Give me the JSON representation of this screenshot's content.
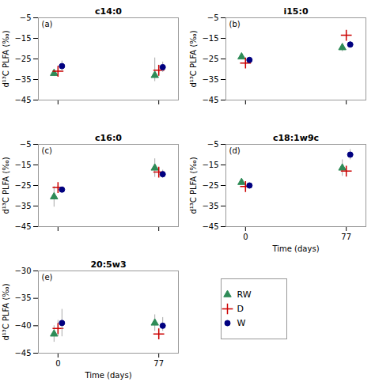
{
  "chart_data": [
    {
      "type": "scatter",
      "title": "c14:0",
      "annotation": "(a)",
      "ylabel": "d¹³C PLFA (‰)",
      "x": [
        0,
        77
      ],
      "xlim": [
        -15,
        92
      ],
      "xticks": [
        0,
        77
      ],
      "ylim": [
        -45,
        -5
      ],
      "yticks": [
        -45,
        -35,
        -25,
        -15,
        -5
      ],
      "tick_labels": "y",
      "grid": false,
      "series": [
        {
          "name": "RW",
          "color": "#2e8b57",
          "marker": "triangle",
          "values": [
            -32.0,
            -33.0
          ],
          "yerr_lo": [
            1.5,
            3.0
          ],
          "yerr_hi": [
            1.5,
            8.5
          ]
        },
        {
          "name": "D",
          "color": "#cc0000",
          "marker": "plus",
          "values": [
            -31.0,
            -30.5
          ],
          "yerr_lo": [
            1.5,
            2.0
          ],
          "yerr_hi": [
            1.5,
            2.5
          ]
        },
        {
          "name": "W",
          "color": "#000080",
          "marker": "circle",
          "values": [
            -28.5,
            -29.0
          ],
          "yerr_lo": [
            2.5,
            2.5
          ],
          "yerr_hi": [
            2.5,
            2.5
          ]
        }
      ]
    },
    {
      "type": "scatter",
      "title": "i15:0",
      "annotation": "(b)",
      "ylabel": "d¹³C PLFA (‰)",
      "x": [
        0,
        77
      ],
      "xlim": [
        -15,
        92
      ],
      "xticks": [
        0,
        77
      ],
      "ylim": [
        -45,
        -5
      ],
      "yticks": [
        -45,
        -35,
        -25,
        -15,
        -5
      ],
      "tick_labels": "y",
      "grid": false,
      "series": [
        {
          "name": "RW",
          "color": "#2e8b57",
          "marker": "triangle",
          "values": [
            -24.0,
            -19.5
          ],
          "yerr_lo": [
            1.0,
            2.0
          ],
          "yerr_hi": [
            1.0,
            2.0
          ]
        },
        {
          "name": "D",
          "color": "#cc0000",
          "marker": "plus",
          "values": [
            -27.0,
            -13.5
          ],
          "yerr_lo": [
            1.0,
            1.5
          ],
          "yerr_hi": [
            1.0,
            1.5
          ]
        },
        {
          "name": "W",
          "color": "#000080",
          "marker": "circle",
          "values": [
            -25.5,
            -18.0
          ],
          "yerr_lo": [
            1.0,
            1.5
          ],
          "yerr_hi": [
            1.0,
            1.5
          ]
        }
      ]
    },
    {
      "type": "scatter",
      "title": "c16:0",
      "annotation": "(c)",
      "ylabel": "d¹³C PLFA (‰)",
      "x": [
        0,
        77
      ],
      "xlim": [
        -15,
        92
      ],
      "xticks": [
        0,
        77
      ],
      "ylim": [
        -45,
        -5
      ],
      "yticks": [
        -45,
        -35,
        -25,
        -15,
        -5
      ],
      "tick_labels": "y",
      "grid": false,
      "series": [
        {
          "name": "RW",
          "color": "#2e8b57",
          "marker": "triangle",
          "values": [
            -30.5,
            -16.5
          ],
          "yerr_lo": [
            5.0,
            4.5
          ],
          "yerr_hi": [
            5.0,
            4.5
          ]
        },
        {
          "name": "D",
          "color": "#cc0000",
          "marker": "plus",
          "values": [
            -26.0,
            -18.5
          ],
          "yerr_lo": [
            1.0,
            2.0
          ],
          "yerr_hi": [
            1.0,
            2.0
          ]
        },
        {
          "name": "W",
          "color": "#000080",
          "marker": "circle",
          "values": [
            -27.0,
            -19.5
          ],
          "yerr_lo": [
            1.0,
            2.0
          ],
          "yerr_hi": [
            1.0,
            2.0
          ]
        }
      ]
    },
    {
      "type": "scatter",
      "title": "c18:1w9c",
      "annotation": "(d)",
      "ylabel": "d¹³C PLFA (‰)",
      "xlabel": "Time (days)",
      "x": [
        0,
        77
      ],
      "xlim": [
        -15,
        92
      ],
      "xticks": [
        0,
        77
      ],
      "ylim": [
        -45,
        -5
      ],
      "yticks": [
        -45,
        -35,
        -25,
        -15,
        -5
      ],
      "grid": false,
      "series": [
        {
          "name": "RW",
          "color": "#2e8b57",
          "marker": "triangle",
          "values": [
            -23.5,
            -16.5
          ],
          "yerr_lo": [
            1.0,
            4.0
          ],
          "yerr_hi": [
            1.0,
            4.0
          ]
        },
        {
          "name": "D",
          "color": "#cc0000",
          "marker": "plus",
          "values": [
            -25.5,
            -18.0
          ],
          "yerr_lo": [
            1.0,
            1.5
          ],
          "yerr_hi": [
            1.0,
            1.5
          ]
        },
        {
          "name": "W",
          "color": "#000080",
          "marker": "circle",
          "values": [
            -25.0,
            -10.0
          ],
          "yerr_lo": [
            1.0,
            2.5
          ],
          "yerr_hi": [
            1.0,
            2.5
          ]
        }
      ]
    },
    {
      "type": "scatter",
      "title": "20:5w3",
      "annotation": "(e)",
      "ylabel": "d¹³C PLFA (‰)",
      "xlabel": "Time (days)",
      "x": [
        0,
        77
      ],
      "xlim": [
        -15,
        92
      ],
      "xticks": [
        0,
        77
      ],
      "ylim": [
        -45,
        -30
      ],
      "yticks": [
        -45,
        -40,
        -35,
        -30
      ],
      "grid": false,
      "legend": "right",
      "series": [
        {
          "name": "RW",
          "color": "#2e8b57",
          "marker": "triangle",
          "values": [
            -41.5,
            -39.5
          ],
          "yerr_lo": [
            1.5,
            1.5
          ],
          "yerr_hi": [
            1.5,
            1.5
          ]
        },
        {
          "name": "D",
          "color": "#cc0000",
          "marker": "plus",
          "values": [
            -40.5,
            -41.5
          ],
          "yerr_lo": [
            1.5,
            1.0
          ],
          "yerr_hi": [
            1.5,
            1.0
          ]
        },
        {
          "name": "W",
          "color": "#000080",
          "marker": "circle",
          "values": [
            -39.5,
            -40.0
          ],
          "yerr_lo": [
            2.5,
            1.0
          ],
          "yerr_hi": [
            2.5,
            1.5
          ]
        }
      ]
    }
  ]
}
